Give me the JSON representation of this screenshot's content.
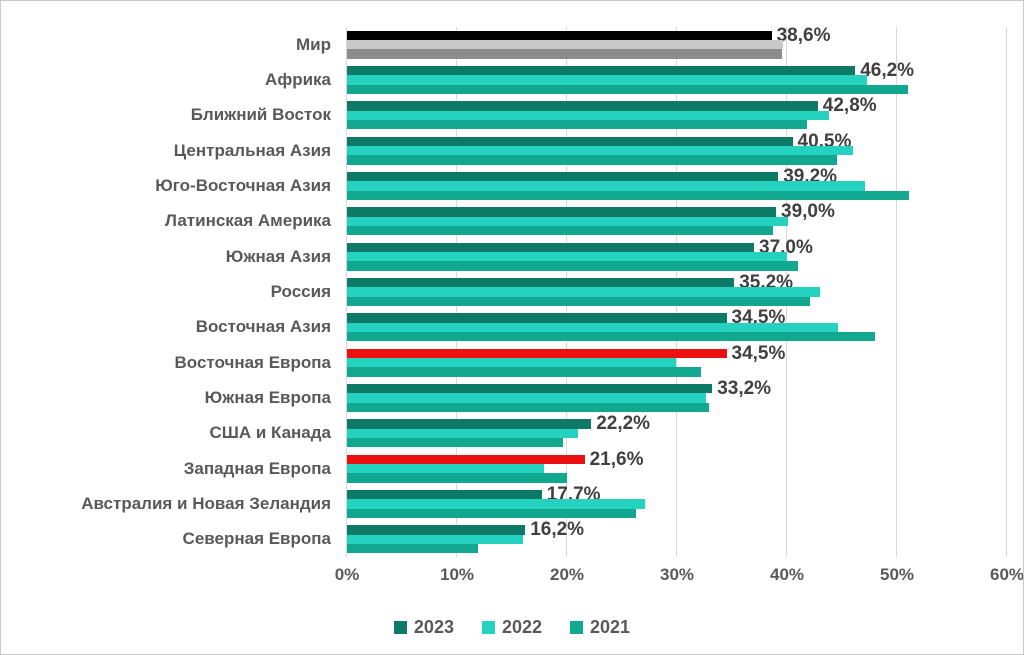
{
  "chart_data": {
    "type": "bar",
    "orientation": "horizontal-grouped",
    "title": "",
    "xlabel": "",
    "ylabel": "",
    "xlim": [
      0,
      60
    ],
    "x_ticks": [
      "0%",
      "10%",
      "20%",
      "30%",
      "40%",
      "50%",
      "60%"
    ],
    "x_tick_values": [
      0,
      10,
      20,
      30,
      40,
      50,
      60
    ],
    "grid": "vertical-light-gray",
    "legend_position": "bottom-center",
    "series_order_top_to_bottom": [
      "2023",
      "2022",
      "2021"
    ],
    "legend": [
      {
        "label": "2023",
        "color": "#0d7a68"
      },
      {
        "label": "2022",
        "color": "#24d2bf"
      },
      {
        "label": "2021",
        "color": "#12a78f"
      }
    ],
    "value_label_series": "2023",
    "rows": [
      {
        "category": "Мир",
        "label": "38,6%",
        "values": [
          38.6,
          39.6,
          39.5
        ],
        "colors": [
          "#000000",
          "#c9c9c9",
          "#8c8c8c"
        ]
      },
      {
        "category": "Африка",
        "label": "46,2%",
        "values": [
          46.2,
          47.3,
          51.0
        ]
      },
      {
        "category": "Ближний Восток",
        "label": "42,8%",
        "values": [
          42.8,
          43.8,
          41.8
        ]
      },
      {
        "category": "Центральная Азия",
        "label": "40,5%",
        "values": [
          40.5,
          46.0,
          44.5
        ]
      },
      {
        "category": "Юго-Восточная Азия",
        "label": "39,2%",
        "values": [
          39.2,
          47.1,
          51.1
        ]
      },
      {
        "category": "Латинская Америка",
        "label": "39,0%",
        "values": [
          39.0,
          40.1,
          38.7
        ]
      },
      {
        "category": "Южная Азия",
        "label": "37,0%",
        "values": [
          37.0,
          40.0,
          41.0
        ]
      },
      {
        "category": "Россия",
        "label": "35,2%",
        "values": [
          35.2,
          43.0,
          42.1
        ]
      },
      {
        "category": "Восточная Азия",
        "label": "34,5%",
        "values": [
          34.5,
          44.6,
          48.0
        ]
      },
      {
        "category": "Восточная Европа",
        "label": "34,5%",
        "values": [
          34.5,
          29.9,
          32.2
        ],
        "colors": [
          "#ec1111",
          null,
          null
        ]
      },
      {
        "category": "Южная Европа",
        "label": "33,2%",
        "values": [
          33.2,
          32.6,
          32.9
        ]
      },
      {
        "category": "США и Канада",
        "label": "22,2%",
        "values": [
          22.2,
          21.0,
          19.6
        ]
      },
      {
        "category": "Западная Европа",
        "label": "21,6%",
        "values": [
          21.6,
          17.9,
          20.0
        ],
        "colors": [
          "#ec1111",
          null,
          null
        ]
      },
      {
        "category": "Австралия и Новая Зеландия",
        "label": "17,7%",
        "values": [
          17.7,
          27.1,
          26.3
        ]
      },
      {
        "category": "Северная Европа",
        "label": "16,2%",
        "values": [
          16.2,
          16.0,
          11.9
        ]
      }
    ],
    "colors": {
      "gridline": "#d9d9d9",
      "category_text": "#595959",
      "tick_text": "#595959",
      "value_label_text": "#404040",
      "highlight_red": "#ec1111",
      "world_2023": "#000000",
      "world_2022": "#c9c9c9",
      "world_2021": "#8c8c8c"
    }
  }
}
